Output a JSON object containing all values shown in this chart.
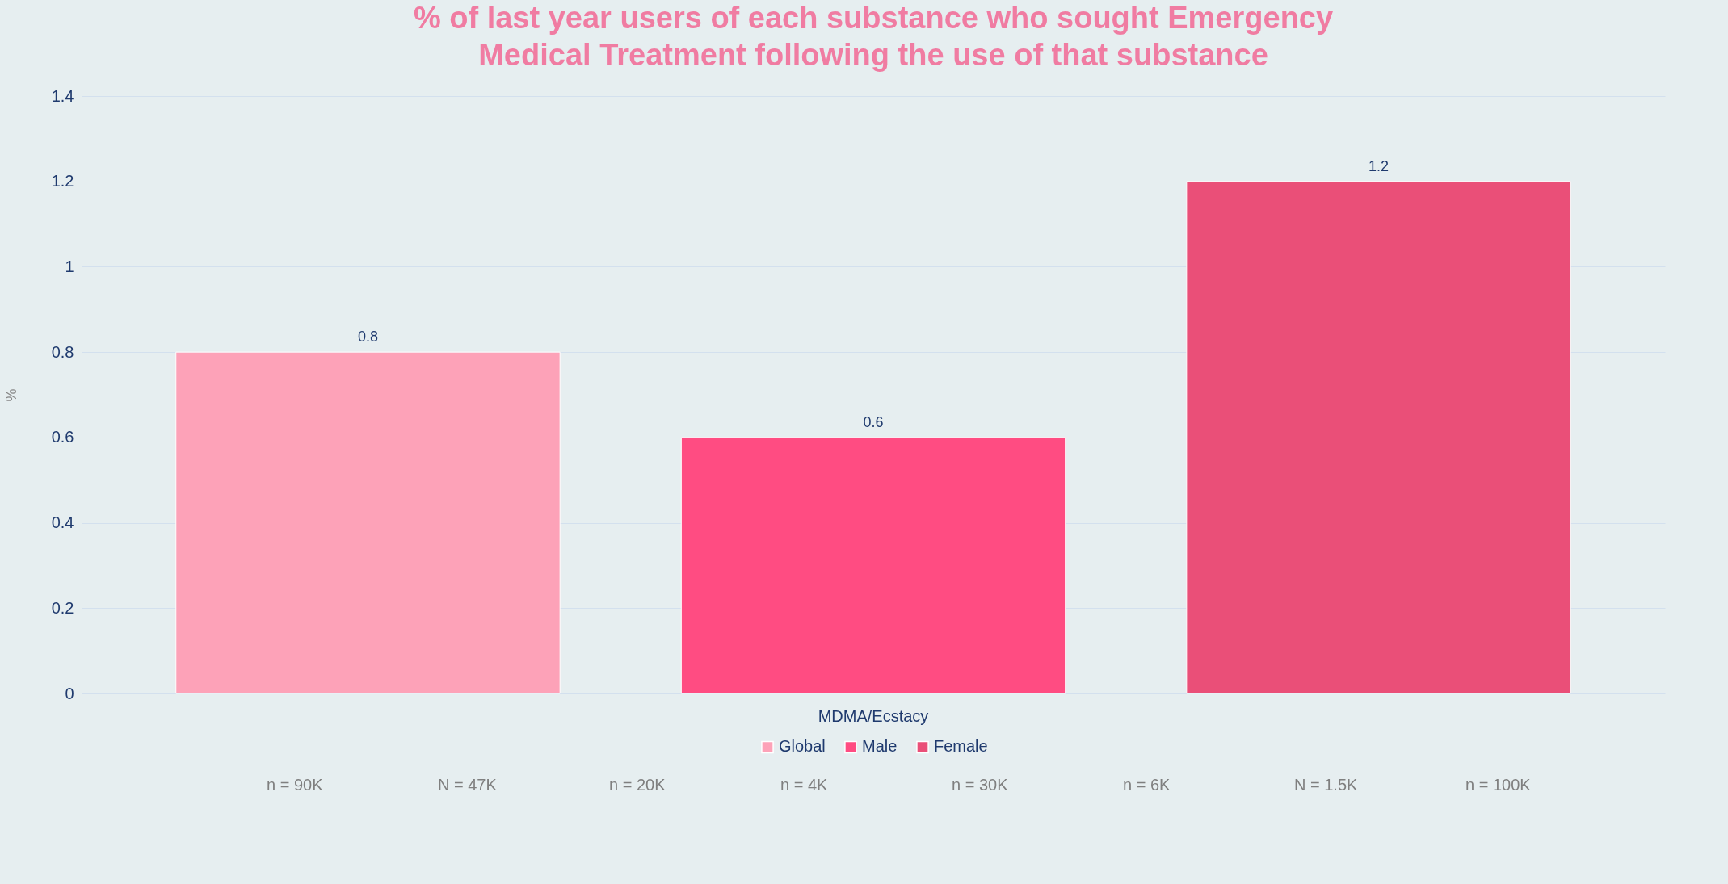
{
  "chart_data": {
    "type": "bar",
    "title": "% of last year users of each substance who sought Emergency Medical Treatment following the use of that substance",
    "ylabel": "%",
    "categories": [
      "MDMA/Ecstacy"
    ],
    "series": [
      {
        "name": "Global",
        "color": "#fda2b8",
        "values": [
          0.8
        ]
      },
      {
        "name": "Male",
        "color": "#ff4c82",
        "values": [
          0.6
        ]
      },
      {
        "name": "Female",
        "color": "#ea4f78",
        "values": [
          1.2
        ]
      }
    ],
    "ylim": [
      0,
      1.4
    ],
    "yticks": [
      0,
      0.2,
      0.4,
      0.6,
      0.8,
      1,
      1.2,
      1.4
    ],
    "grid": "y",
    "legend": "bottom",
    "data_labels": true,
    "annotations": [
      "n = 90K",
      "N = 47K",
      "n = 20K",
      "n = 4K",
      "n = 30K",
      "n = 6K",
      "N = 1.5K",
      "n = 100K"
    ]
  }
}
